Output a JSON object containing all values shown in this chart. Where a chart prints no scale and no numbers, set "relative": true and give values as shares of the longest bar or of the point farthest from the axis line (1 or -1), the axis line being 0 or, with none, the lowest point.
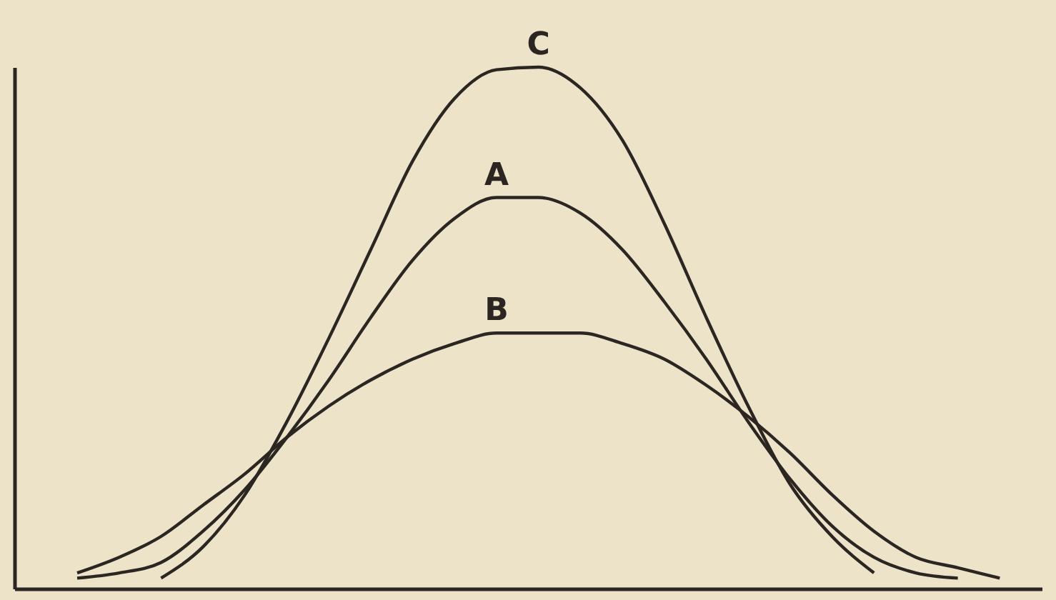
{
  "chart_data": {
    "type": "line",
    "relative": true,
    "categories": [
      null,
      null,
      null,
      null,
      null,
      null,
      null,
      null,
      null,
      null,
      null,
      null,
      null,
      null,
      null,
      null,
      null,
      null,
      null,
      null,
      null,
      null,
      null,
      null
    ],
    "series": [
      {
        "name": "C",
        "color": "#2b2622",
        "values": [
          null,
          null,
          0.02,
          0.08,
          0.18,
          0.32,
          0.48,
          0.65,
          0.82,
          0.94,
          0.995,
          1,
          0.96,
          0.86,
          0.7,
          0.52,
          0.35,
          0.2,
          0.1,
          0.03,
          null,
          null,
          null,
          null
        ]
      },
      {
        "name": "A",
        "color": "#2b2622",
        "values": [
          0.02,
          0.03,
          0.05,
          0.11,
          0.19,
          0.29,
          0.4,
          0.52,
          0.63,
          0.71,
          0.75,
          0.75,
          0.72,
          0.65,
          0.55,
          0.44,
          0.32,
          0.21,
          0.12,
          0.06,
          0.03,
          0.02,
          null,
          null
        ]
      },
      {
        "name": "B",
        "color": "#2b2622",
        "values": [
          0.03,
          0.06,
          0.1,
          0.16,
          0.22,
          0.29,
          0.35,
          0.4,
          0.44,
          0.47,
          0.49,
          0.49,
          0.49,
          0.47,
          0.44,
          0.39,
          0.33,
          0.26,
          0.18,
          0.11,
          0.06,
          0.04,
          0.02,
          null
        ]
      }
    ],
    "legend": false,
    "marker": "none",
    "line_style": "solid",
    "grid": false
  }
}
